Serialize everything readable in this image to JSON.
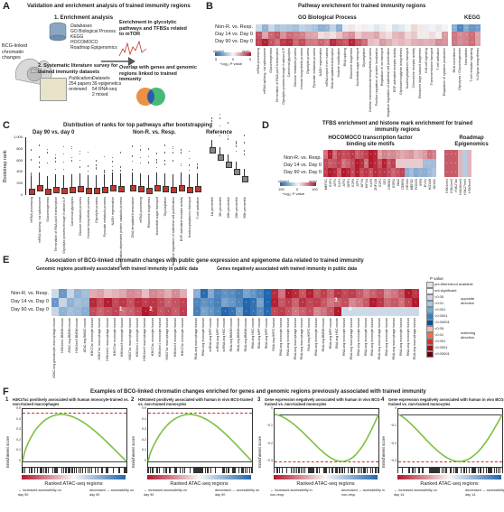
{
  "panelA": {
    "label": "A",
    "title": "Validation and enrichment analysis of trained immunity regions",
    "bcg_label": "BCG-linked chromatin changes",
    "bcg_badge": "BCG",
    "step1": "1. Enrichment analysis",
    "databases_hdr": "Databases",
    "databases": [
      "GO Biological Process",
      "KEGG",
      "HOCOMOCO",
      "Roadmap Epigenomics"
    ],
    "enrich_text": "Enrichment in glycolytic pathways and TFBSs related to mTOR",
    "step2": "2. Systematic literature survey for trained immunity datasets",
    "pubs_hdr": "Publications",
    "pubs": "254 papers reviewed",
    "datasets_hdr": "Datasets",
    "datasets": [
      "39 epigenetics",
      "54 RNA-seq",
      "2 mixed"
    ],
    "overlap_text": "Overlap with genes and genomic regions linked to trained immunity"
  },
  "panelB": {
    "label": "B",
    "title": "Pathway enrichment for trained immunity regions",
    "go_hdr": "GO Biological Process",
    "kegg_hdr": "KEGG",
    "rows": [
      "Non-R. vs. Resp.",
      "Day 14 vs. Day 0",
      "Day 90 vs. Day 0"
    ],
    "legend": {
      "closed": "closed",
      "open": "open",
      "ticks": [
        "5",
        "0",
        "5"
      ],
      "axis": "−log₁₀ P value"
    },
    "go_terms": [
      "mRNA processing",
      "mRNA splicing, via spliceosome",
      "Gluconeogenesis",
      "Termination of RNA pol II transcription",
      "Glycolytic process through fructose-6-P",
      "Canonical glycolysis",
      "Glucose metabolic process",
      "Hexose biosynthetic process",
      "Glycolytic process",
      "Pyruvate metabolic process",
      "NADH regeneration",
      "mRNA export from nucleus",
      "DNA-templated transcription",
      "Histone modification",
      "RNA splicing",
      "Ribosome biogenesis",
      "Nucleotide-sugar transport",
      "Glycosylation",
      "Cellular macromolecule biosynthetic process",
      "Positive regulation of protein localization",
      "Regulation of ion transport",
      "Negative regulation of epithelial cell proliferation",
      "EGF-activated receptor activity",
      "Glycosaminoglycan biosynthesis",
      "Nucleocytoplasmic transport",
      "Chemokine receptor activity",
      "Ribosome large subunit biogenesis",
      "Cell-cell signaling",
      "Transmembrane transport",
      "T cell activation",
      "Regulation of cytokine production"
    ],
    "kegg_terms": [
      "RNA surveillance",
      "Glycolysis / Gluconeogenesis",
      "Necroptosis",
      "T cell receptor signaling",
      "N-Glycan biosynthesis"
    ]
  },
  "panelC": {
    "label": "C",
    "title": "Distribution of ranks for top pathways after bootstrapping",
    "ylabel": "Bootstrap rank",
    "yticks": [
      "0",
      "200",
      "400",
      "600",
      "800",
      "1,000"
    ],
    "sub1": "Day 90 vs. day 0",
    "sub2": "Non-R. vs. Resp.",
    "sub3": "Reference",
    "labels1": [
      "mRNA processing",
      "mRNA splicing, via spliceosome",
      "Gluconeogenesis",
      "Termination of RNA pol II transcription",
      "Glycolytic process through fructose-6-P",
      "Canonical glycolysis",
      "Glucose metabolic process",
      "Hexose biosynthetic process",
      "Glycolytic process",
      "Pyruvate metabolic process",
      "NADH regeneration",
      "Modification-dependent protein catabolic process"
    ],
    "labels2": [
      "DNA-templated transcription",
      "mRNA processing",
      "Ribosome biogenesis",
      "Nucleotide-sugar transport",
      "Glycosylation",
      "Negative regulation of epithelial cell proliferation",
      "EGF-activated receptor activity",
      "Nucleocytoplasmic transport",
      "T cell activation"
    ],
    "labels3": [
      "1st percentile",
      "5th percentile",
      "10th percentile",
      "25th percentile",
      "50th percentile"
    ]
  },
  "panelD": {
    "label": "D",
    "title": "TFBS enrichment and histone mark enrichment for trained immunity regions",
    "sub1": "HOCOMOCO transcription factor binding site motifs",
    "sub2": "Roadmap Epigenomics",
    "rows": [
      "Non-R. vs. Resp.",
      "Day 14 vs. Day 0",
      "Day 90 vs. Day 0"
    ],
    "legend": {
      "closed": "closed",
      "open": "open",
      "ticks": [
        "100",
        "0",
        "100"
      ],
      "axis": "−log₁₀ P value"
    },
    "tfs": [
      "MEF2C",
      "E2F4",
      "ATF1",
      "KLF4",
      "ATF2",
      "NRF1",
      "E2F6",
      "ATF4",
      "NFYA",
      "HIF1A",
      "KLF6",
      "ZNF148",
      "E2F1",
      "SP2",
      "CREB3",
      "EGR1",
      "MAZ",
      "CEBPA",
      "NR4A1",
      "MEF2D",
      "FOXO3",
      "IRF8",
      "EVX1",
      "HOXA9",
      "NKX61"
    ],
    "marks": [
      "H3K4me1",
      "H3K4me3",
      "H3K27ac",
      "H3K36me3",
      "H3K27me3",
      "H3K9me3"
    ]
  },
  "panelE": {
    "label": "E",
    "title": "Association of BCG-linked chromatin changes with public gene expression and epigenome data related to trained immunity",
    "sub1": "Genomic regions positively associated with trained immunity in public data",
    "sub2": "Genes negatively associated with trained immunity in public data",
    "rows": [
      "Non-R. vs. Resp.",
      "Day 14 vs. Day 0",
      "Day 90 vs. Day 0"
    ],
    "markers": [
      "1",
      "2",
      "3",
      "4"
    ],
    "legend_title": "P value",
    "legend_items": [
      "pre-filtered/not available",
      "not significant",
      "<0.05",
      "<0.01",
      "<0.001",
      "<0.0001",
      "<0.00001",
      "<0.05",
      "<0.01",
      "<0.001",
      "<0.0001",
      "<0.00001"
    ],
    "legend_groups": [
      "opposite direction",
      "matching direction"
    ],
    "cols_left": [
      "ATAC-seq granulocyte-macrophage mouse",
      "H3K4me1 BMDM mouse",
      "ATAC-seq BMDM mouse",
      "H3K4me3 BMDM mouse",
      "ATAC-seq BMDC mouse",
      "H3K27ac monocyte human",
      "H3K27ac macrophage human",
      "H3K4me1 macrophage human",
      "H3K27ac monocyte human",
      "H3K4me3 monocyte human",
      "H3K27ac macrophage human",
      "H3K4me1 monocyte human",
      "H3K4me3 macrophage human",
      "H3K27ac monocyte human",
      "H3K4me1 monocyte human",
      "H3K27ac macrophage human",
      "H3K4me3 monocyte human",
      "H3K27ac monocyte human"
    ],
    "cols_right": [
      "RNA-seq macrophage human",
      "RNA-seq monocyte human",
      "scRNA-seq MPP mouse",
      "scRNA-seq MPP mouse",
      "scRNA-seq HSC mouse",
      "RNA-seq BMDM mouse",
      "RNA-seq BMDM mouse",
      "RNA-seq BMDM mouse",
      "RNA-seq HSC mouse",
      "RNA-seq MPP mouse",
      "RNA-seq MPP mouse",
      "RNA-seq HSPC human",
      "RNA-seq monocyte human",
      "RNA-seq monocyte human",
      "RNA-seq macrophage human",
      "RNA-seq macrophage human",
      "RNA-seq HSPC human",
      "RNA-seq monocyte human",
      "RNA-seq BMDM mouse",
      "RNA-seq MPP mouse",
      "RNA-seq HSC mouse",
      "RNA-seq monocyte human",
      "RNA-seq macrophage human",
      "RNA-seq monocyte human",
      "RNA-seq monocyte human",
      "RNA-seq monocyte human",
      "RNA-seq macrophage human",
      "RNA-seq monocyte human",
      "RNA-seq macrophage human",
      "RNA-seq monocyte human",
      "RNA-seq monocyte human",
      "RNA-seq macrophage human"
    ]
  },
  "panelF": {
    "label": "F",
    "title": "Examples of BCG-linked chromatin changes enriched for genes and genomic regions previously associated with trained immunity",
    "ylabel": "Enrichment score",
    "xlabel": "Ranked ATAC-seq regions",
    "plots": [
      {
        "num": "1",
        "title": "H3K27ac positively associated with human monocyte-trained vs. non-trained macrophages",
        "left": "← increased accessibility on day 90",
        "right": "decreased → accessibility on day 90",
        "yticks": [
          "0.5",
          "0.4",
          "0.3",
          "0.2",
          "0.1",
          "0"
        ]
      },
      {
        "num": "2",
        "title": "H3K4me3 positively associated with human in vivo BCG-trained vs. non-trained monocytes",
        "left": "← increased accessibility on day 90",
        "right": "decreased → accessibility on day 90",
        "yticks": [
          "0.5",
          "0.4",
          "0.3",
          "0.2",
          "0.1",
          "0"
        ]
      },
      {
        "num": "3",
        "title": "Gene expression negatively associated with human in vivo BCG-trained vs. non-trained monocytes",
        "left": "← increased accessibility in non-resp.",
        "right": "decreased → accessibility in non-resp.",
        "yticks": [
          "0",
          "−0.1",
          "−0.2",
          "−0.3"
        ]
      },
      {
        "num": "4",
        "title": "Gene expression negatively associated with human in vivo BCG-trained vs. non-trained monocytes",
        "left": "← increased accessibility on day 14",
        "right": "decreased → accessibility on day 14",
        "yticks": [
          "0",
          "−0.1",
          "−0.2",
          "−0.3"
        ]
      }
    ]
  },
  "colors": {
    "open": "#b2182b",
    "closed": "#2166ac",
    "curve": "#7ac143",
    "dash": "#d62728"
  }
}
